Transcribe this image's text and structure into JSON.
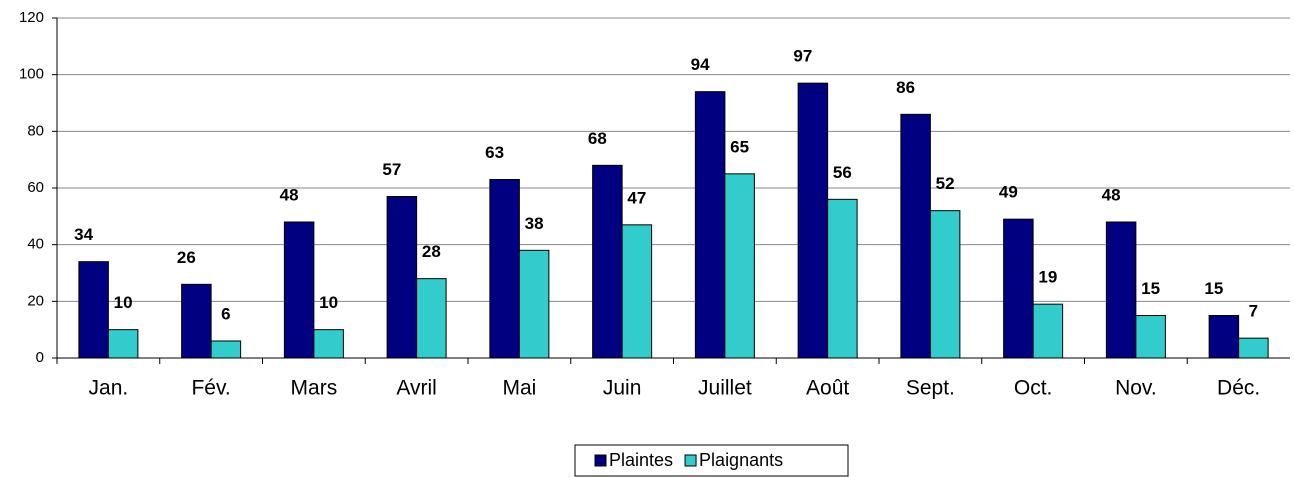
{
  "chart_data": {
    "type": "bar",
    "categories": [
      "Jan.",
      "Fév.",
      "Mars",
      "Avril",
      "Mai",
      "Juin",
      "Juillet",
      "Août",
      "Sept.",
      "Oct.",
      "Nov.",
      "Déc."
    ],
    "series": [
      {
        "name": "Plaintes",
        "color": "#000080",
        "values": [
          34,
          26,
          48,
          57,
          63,
          68,
          94,
          97,
          86,
          49,
          48,
          15
        ]
      },
      {
        "name": "Plaignants",
        "color": "#33cccc",
        "values": [
          10,
          6,
          10,
          28,
          38,
          47,
          65,
          56,
          52,
          19,
          15,
          7
        ]
      }
    ],
    "ylim": [
      0,
      120
    ],
    "yticks": [
      0,
      20,
      40,
      60,
      80,
      100,
      120
    ],
    "grid": true,
    "legend": "bottom"
  }
}
